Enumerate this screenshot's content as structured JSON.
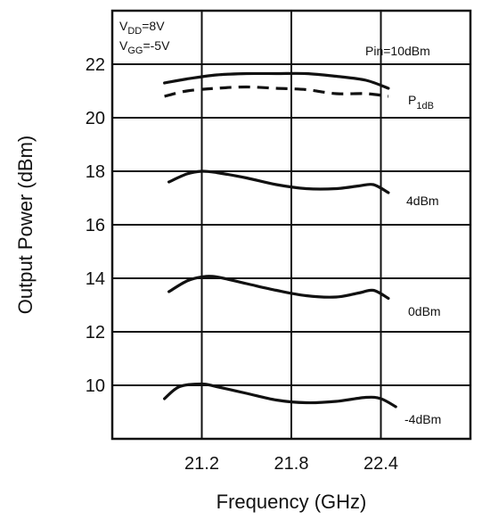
{
  "chart_data": {
    "type": "line",
    "xlabel": "Frequency (GHz)",
    "ylabel": "Output Power (dBm)",
    "xlim": [
      20.6,
      23.0
    ],
    "ylim": [
      8.0,
      24.0
    ],
    "xticks": [
      21.2,
      21.8,
      22.4
    ],
    "yticks": [
      10,
      12,
      14,
      16,
      18,
      20,
      22
    ],
    "grid": true,
    "conditions": [
      {
        "main": "V",
        "sub": "DD",
        "rest": "=8V"
      },
      {
        "main": "V",
        "sub": "GG",
        "rest": "=-5V"
      }
    ],
    "series": [
      {
        "name": "Pin=10dBm",
        "style": "solid",
        "x": [
          20.95,
          21.1,
          21.3,
          21.5,
          21.7,
          21.9,
          22.1,
          22.3,
          22.45
        ],
        "y": [
          21.3,
          21.45,
          21.6,
          21.65,
          21.65,
          21.65,
          21.55,
          21.4,
          21.1
        ]
      },
      {
        "name": "P1dB",
        "label_main": "P",
        "label_sub": "1dB",
        "style": "dashed",
        "x": [
          20.95,
          21.1,
          21.3,
          21.5,
          21.7,
          21.9,
          22.1,
          22.3,
          22.45
        ],
        "y": [
          20.8,
          21.0,
          21.1,
          21.15,
          21.1,
          21.05,
          20.9,
          20.9,
          20.8
        ]
      },
      {
        "name": "4dBm",
        "style": "solid",
        "x": [
          20.98,
          21.1,
          21.2,
          21.3,
          21.5,
          21.7,
          21.9,
          22.1,
          22.25,
          22.35,
          22.45
        ],
        "y": [
          17.6,
          17.9,
          18.0,
          17.95,
          17.75,
          17.5,
          17.35,
          17.35,
          17.45,
          17.5,
          17.2
        ]
      },
      {
        "name": "0dBm",
        "style": "solid",
        "x": [
          20.98,
          21.1,
          21.2,
          21.3,
          21.5,
          21.7,
          21.9,
          22.1,
          22.25,
          22.35,
          22.45
        ],
        "y": [
          13.5,
          13.9,
          14.05,
          14.05,
          13.8,
          13.55,
          13.35,
          13.3,
          13.45,
          13.55,
          13.25
        ]
      },
      {
        "name": "-4dBm",
        "style": "solid",
        "x": [
          20.95,
          21.05,
          21.2,
          21.3,
          21.5,
          21.7,
          21.9,
          22.1,
          22.3,
          22.4,
          22.5
        ],
        "y": [
          9.5,
          9.95,
          10.05,
          9.95,
          9.7,
          9.45,
          9.35,
          9.4,
          9.55,
          9.5,
          9.2
        ]
      }
    ]
  }
}
